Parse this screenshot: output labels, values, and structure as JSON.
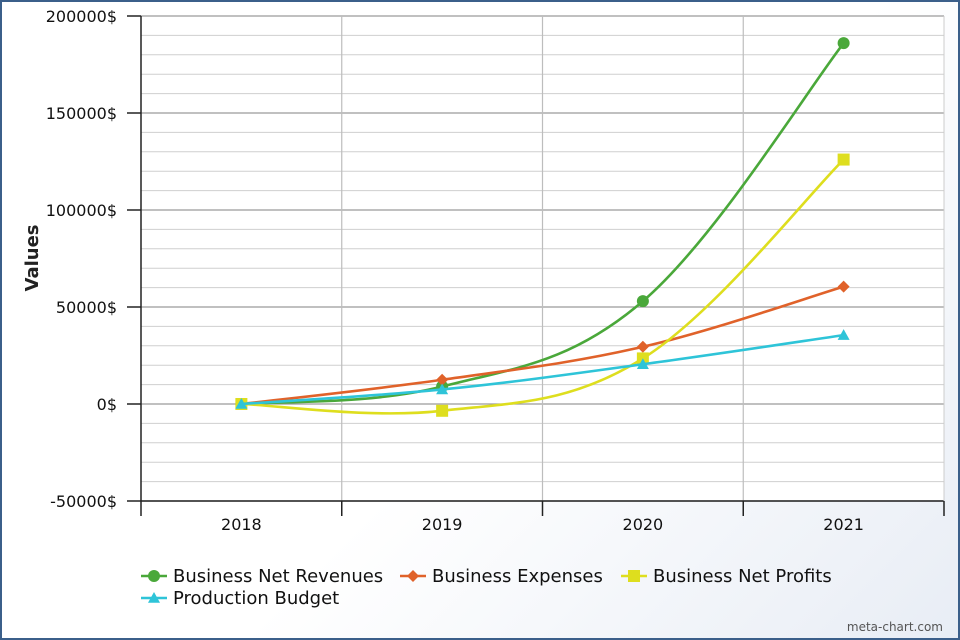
{
  "chart_data": {
    "type": "line",
    "ylabel": "Values",
    "categories": [
      "2018",
      "2019",
      "2020",
      "2021"
    ],
    "ylim": [
      -50000,
      200000
    ],
    "yticks": [
      200000,
      150000,
      100000,
      50000,
      0,
      -50000
    ],
    "ytick_labels": [
      "200000$",
      "150000$",
      "100000$",
      "50000$",
      "0$",
      "-50000$"
    ],
    "grid": true,
    "legend_position": "bottom",
    "series": [
      {
        "name": "Business Net Revenues",
        "values": [
          0,
          9000,
          53000,
          186000
        ],
        "color": "#4aa83a",
        "marker": "circle"
      },
      {
        "name": "Business Expenses",
        "values": [
          0,
          12500,
          29500,
          60500
        ],
        "color": "#e0622a",
        "marker": "diamond"
      },
      {
        "name": "Business Net Profits",
        "values": [
          0,
          -3500,
          23500,
          126000
        ],
        "color": "#dede1e",
        "marker": "square"
      },
      {
        "name": "Production Budget",
        "values": [
          0,
          7500,
          20500,
          35500
        ],
        "color": "#2ec4d8",
        "marker": "triangle"
      }
    ]
  },
  "credit": "meta-chart.com"
}
